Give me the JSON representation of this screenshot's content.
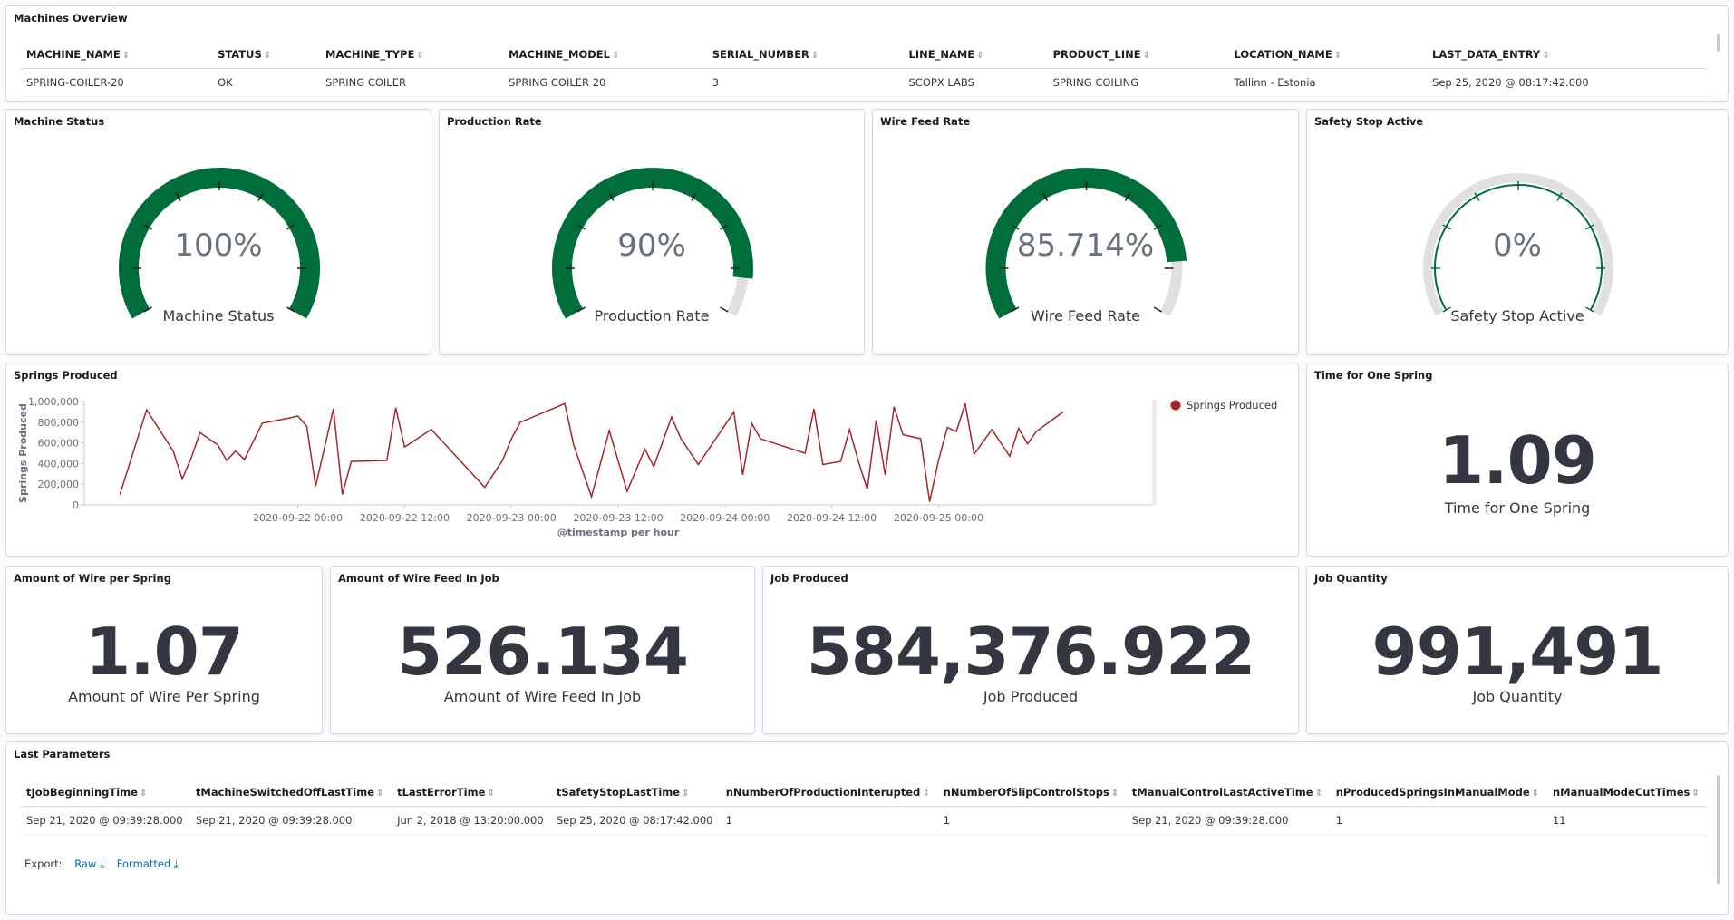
{
  "machines_overview": {
    "title": "Machines Overview",
    "columns": [
      "MACHINE_NAME",
      "STATUS",
      "MACHINE_TYPE",
      "MACHINE_MODEL",
      "SERIAL_NUMBER",
      "LINE_NAME",
      "PRODUCT_LINE",
      "LOCATION_NAME",
      "LAST_DATA_ENTRY"
    ],
    "row": [
      "SPRING-COILER-20",
      "OK",
      "SPRING COILER",
      "SPRING COILER 20",
      "3",
      "SCOPX LABS",
      "SPRING COILING",
      "Tallinn - Estonia",
      "Sep 25, 2020 @ 08:17:42.000"
    ]
  },
  "gauges": [
    {
      "title": "Machine Status",
      "value_text": "100%",
      "label": "Machine Status",
      "fraction": 1.0
    },
    {
      "title": "Production Rate",
      "value_text": "90%",
      "label": "Production Rate",
      "fraction": 0.9
    },
    {
      "title": "Wire Feed Rate",
      "value_text": "85.714%",
      "label": "Wire Feed Rate",
      "fraction": 0.857
    },
    {
      "title": "Safety Stop Active",
      "value_text": "0%",
      "label": "Safety Stop Active",
      "fraction": 0.0
    }
  ],
  "colors": {
    "gauge_fill": "#006e3a",
    "gauge_track": "#e0e0e0",
    "series": "#a4262c",
    "metric": "#343741"
  },
  "springs_panel": {
    "title": "Springs Produced"
  },
  "chart_data": {
    "type": "line",
    "ylabel": "Springs Produced",
    "xlabel": "@timestamp per hour",
    "ylim": [
      0,
      1000000
    ],
    "yticks": [
      "0",
      "200,000",
      "400,000",
      "600,000",
      "800,000",
      "1,000,000"
    ],
    "xticks": [
      "2020-09-22 00:00",
      "2020-09-22 12:00",
      "2020-09-23 00:00",
      "2020-09-23 12:00",
      "2020-09-24 00:00",
      "2020-09-24 12:00",
      "2020-09-25 00:00"
    ],
    "legend": "top-right",
    "series": [
      {
        "name": "Springs Produced",
        "points": [
          [
            -20,
            100000
          ],
          [
            -17,
            920000
          ],
          [
            -14,
            520000
          ],
          [
            -13,
            250000
          ],
          [
            -12,
            450000
          ],
          [
            -11,
            700000
          ],
          [
            -9,
            580000
          ],
          [
            -8,
            430000
          ],
          [
            -7,
            520000
          ],
          [
            -6,
            440000
          ],
          [
            -4,
            790000
          ],
          [
            -1,
            840000
          ],
          [
            0,
            860000
          ],
          [
            1,
            760000
          ],
          [
            2,
            180000
          ],
          [
            4,
            930000
          ],
          [
            5,
            100000
          ],
          [
            6,
            420000
          ],
          [
            10,
            430000
          ],
          [
            11,
            940000
          ],
          [
            12,
            560000
          ],
          [
            15,
            730000
          ],
          [
            21,
            170000
          ],
          [
            23,
            430000
          ],
          [
            24,
            640000
          ],
          [
            25,
            800000
          ],
          [
            30,
            980000
          ],
          [
            31,
            580000
          ],
          [
            33,
            80000
          ],
          [
            35,
            720000
          ],
          [
            37,
            130000
          ],
          [
            39,
            540000
          ],
          [
            40,
            370000
          ],
          [
            42,
            850000
          ],
          [
            43,
            650000
          ],
          [
            45,
            390000
          ],
          [
            49,
            900000
          ],
          [
            50,
            290000
          ],
          [
            51,
            790000
          ],
          [
            52,
            640000
          ],
          [
            57,
            500000
          ],
          [
            58,
            930000
          ],
          [
            59,
            390000
          ],
          [
            61,
            420000
          ],
          [
            62,
            730000
          ],
          [
            63,
            420000
          ],
          [
            64,
            150000
          ],
          [
            65,
            820000
          ],
          [
            66,
            290000
          ],
          [
            67,
            950000
          ],
          [
            68,
            680000
          ],
          [
            70,
            640000
          ],
          [
            71,
            30000
          ],
          [
            72,
            430000
          ],
          [
            73,
            750000
          ],
          [
            74,
            710000
          ],
          [
            75,
            980000
          ],
          [
            76,
            490000
          ],
          [
            78,
            730000
          ],
          [
            80,
            470000
          ],
          [
            81,
            740000
          ],
          [
            82,
            590000
          ],
          [
            83,
            710000
          ],
          [
            86,
            900000
          ]
        ]
      }
    ]
  },
  "time_one_spring": {
    "title": "Time for One Spring",
    "value": "1.09",
    "label": "Time for One Spring"
  },
  "wire_per_spring": {
    "title": "Amount of Wire per Spring",
    "value": "1.07",
    "label": "Amount of Wire Per Spring"
  },
  "wire_feed_job": {
    "title": "Amount of Wire Feed In Job",
    "value": "526.134",
    "label": "Amount of Wire Feed In Job"
  },
  "job_produced": {
    "title": "Job Produced",
    "value": "584,376.922",
    "label": "Job Produced"
  },
  "job_quantity": {
    "title": "Job Quantity",
    "value": "991,491",
    "label": "Job Quantity"
  },
  "last_params": {
    "title": "Last Parameters",
    "columns": [
      "tJobBeginningTime",
      "tMachineSwitchedOffLastTime",
      "tLastErrorTime",
      "tSafetyStopLastTime",
      "nNumberOfProductionInterupted",
      "nNumberOfSlipControlStops",
      "tManualControlLastActiveTime",
      "nProducedSpringsInManualMode",
      "nManualModeCutTimes"
    ],
    "row": [
      "Sep 21, 2020 @ 09:39:28.000",
      "Sep 21, 2020 @ 09:39:28.000",
      "Jun 2, 2018 @ 13:20:00.000",
      "Sep 25, 2020 @ 08:17:42.000",
      "1",
      "1",
      "Sep 21, 2020 @ 09:39:28.000",
      "1",
      "11"
    ],
    "export_label": "Export:",
    "raw_label": "Raw",
    "formatted_label": "Formatted"
  }
}
